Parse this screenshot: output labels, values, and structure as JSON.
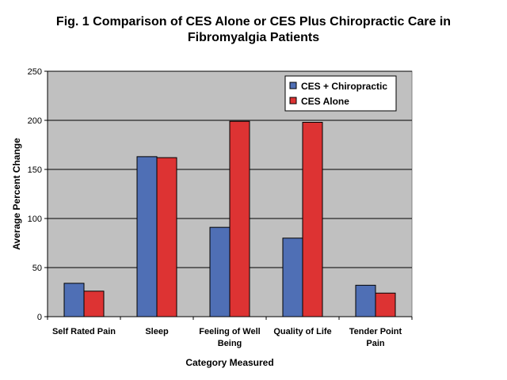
{
  "chart_data": {
    "type": "bar",
    "title_lines": [
      "Fig. 1 Comparison of CES Alone or CES Plus Chiropractic Care in",
      "Fibromyalgia Patients"
    ],
    "categories": [
      [
        "Self Rated Pain"
      ],
      [
        "Sleep"
      ],
      [
        "Feeling of Well",
        "Being"
      ],
      [
        "Quality of Life"
      ],
      [
        "Tender Point",
        "Pain"
      ]
    ],
    "series": [
      {
        "name": "CES + Chiropractic",
        "color": "#4f6fb5",
        "values": [
          34,
          163,
          91,
          80,
          32
        ]
      },
      {
        "name": "CES Alone",
        "color": "#dd3333",
        "values": [
          26,
          162,
          199,
          198,
          24
        ]
      }
    ],
    "xlabel": "Category Measured",
    "ylabel": "Average Percent Change",
    "ylim": [
      0,
      250
    ],
    "yticks": [
      0,
      50,
      100,
      150,
      200,
      250
    ],
    "grid": true,
    "plot_background": "#c0c0c0",
    "legend_position": "top-right"
  }
}
